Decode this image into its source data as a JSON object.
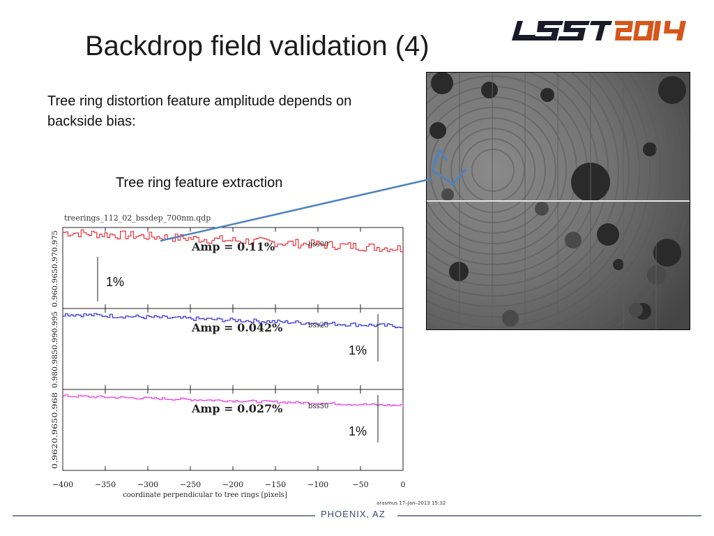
{
  "slide": {
    "title": "Backdrop field validation (4)",
    "body": "Tree ring distortion feature amplitude depends on backside bias:",
    "sublabel": "Tree ring feature extraction"
  },
  "logo": {
    "text_lsst": "LSST",
    "text_year": "2014"
  },
  "plot_file": "treerings_112_02_bssdep_700nm.qdp",
  "chart_data": {
    "type": "line",
    "xlabel": "coordinate perpendicular to tree rings [pixels]",
    "xlim": [
      -400,
      0
    ],
    "xticks": [
      "−400",
      "−350",
      "−300",
      "−250",
      "−200",
      "−150",
      "−100",
      "−50",
      "0"
    ],
    "panels": [
      {
        "name": "bss00",
        "amp": "Amp = 0.11%",
        "scale": "1%",
        "color": "#e8303a",
        "yticks": "0.960.9650.970.975",
        "trend": [
          0.94,
          0.74
        ],
        "noise": 0.055
      },
      {
        "name": "bss25",
        "amp": "Amp = 0.042%",
        "scale": "1%",
        "color": "#2d2de0",
        "yticks": "0.980.9850.990.995",
        "trend": [
          0.93,
          0.78
        ],
        "noise": 0.025
      },
      {
        "name": "bss50",
        "amp": "Amp = 0.027%",
        "scale": "1%",
        "color": "#f036e6",
        "yticks": "0.9620.9650.968",
        "trend": [
          0.92,
          0.8
        ],
        "noise": 0.015
      }
    ]
  },
  "stamp": "arasmus 17–Jan–2013 15:32",
  "footer": {
    "location": "PHOENIX, AZ"
  }
}
